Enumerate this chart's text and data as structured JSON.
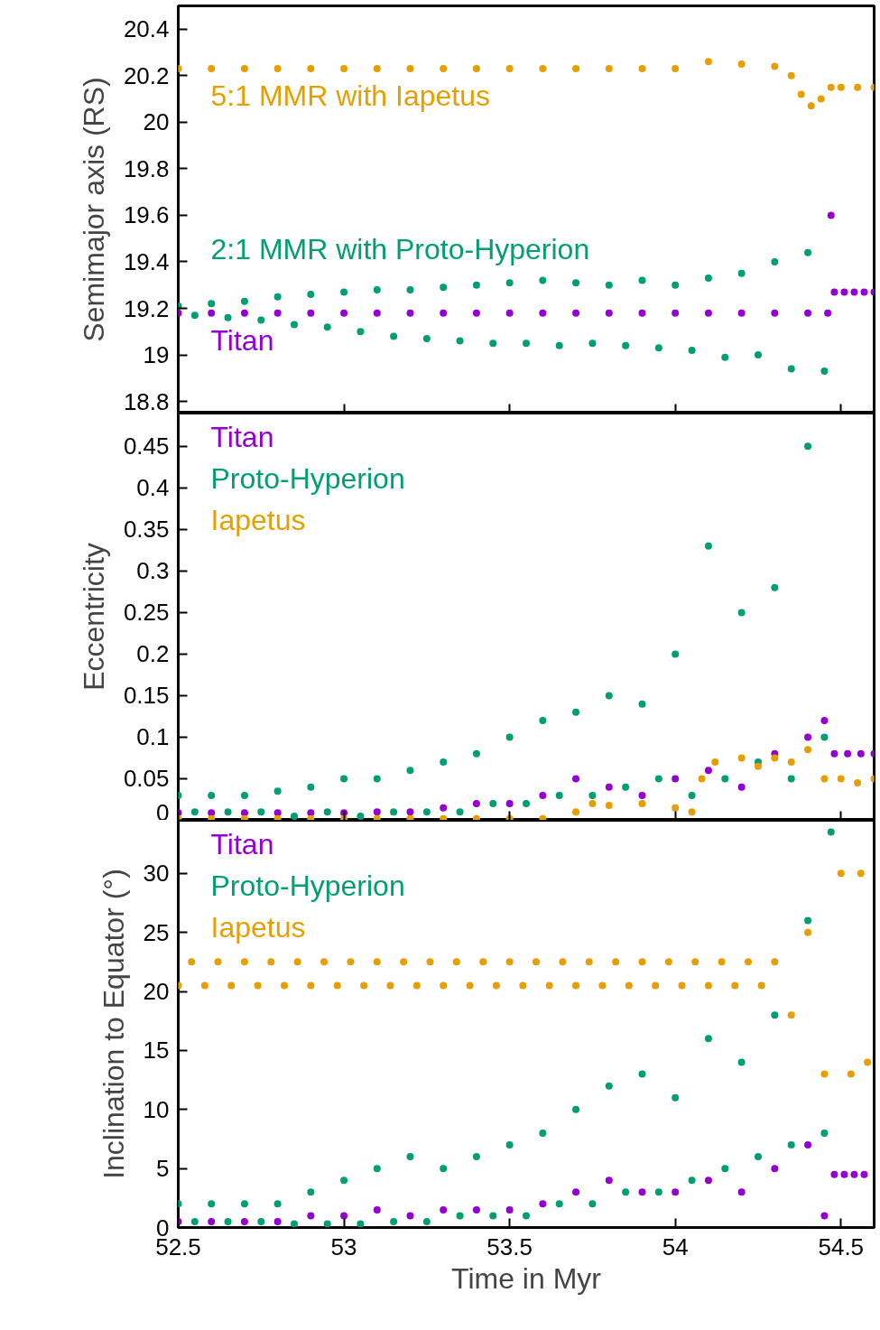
{
  "chart_data": [
    {
      "type": "scatter",
      "ylabel": "Semimajor axis (RS)",
      "xlim": [
        52.5,
        54.6
      ],
      "xticks": [
        52.5,
        53,
        53.5,
        54,
        54.5
      ],
      "ylim": [
        18.75,
        20.5
      ],
      "yticks": [
        18.8,
        19,
        19.2,
        19.4,
        19.6,
        19.8,
        20,
        20.2,
        20.4
      ],
      "tick_labels": "y",
      "marker": "circle",
      "series": [
        {
          "name": "5:1 MMR with Iapetus",
          "color": "#e69f00",
          "x": [
            52.5,
            52.6,
            52.7,
            52.8,
            52.9,
            53.0,
            53.1,
            53.2,
            53.3,
            53.4,
            53.5,
            53.6,
            53.7,
            53.8,
            53.9,
            54.0,
            54.1,
            54.2,
            54.3,
            54.35,
            54.38,
            54.41,
            54.44,
            54.47,
            54.5,
            54.55,
            54.6
          ],
          "values": [
            20.23,
            20.23,
            20.23,
            20.23,
            20.23,
            20.23,
            20.23,
            20.23,
            20.23,
            20.23,
            20.23,
            20.23,
            20.23,
            20.23,
            20.23,
            20.23,
            20.26,
            20.25,
            20.24,
            20.2,
            20.12,
            20.07,
            20.1,
            20.15,
            20.15,
            20.15,
            20.15
          ]
        },
        {
          "name": "2:1 MMR with Proto-Hyperion",
          "color": "#009e73",
          "x": [
            52.5,
            52.55,
            52.6,
            52.65,
            52.7,
            52.75,
            52.8,
            52.85,
            52.9,
            52.95,
            53.0,
            53.05,
            53.1,
            53.15,
            53.2,
            53.25,
            53.3,
            53.35,
            53.4,
            53.45,
            53.5,
            53.55,
            53.6,
            53.65,
            53.7,
            53.75,
            53.8,
            53.85,
            53.9,
            53.95,
            54.0,
            54.05,
            54.1,
            54.15,
            54.2,
            54.25,
            54.3,
            54.35,
            54.4,
            54.45
          ],
          "values": [
            19.21,
            19.17,
            19.22,
            19.16,
            19.23,
            19.15,
            19.25,
            19.13,
            19.26,
            19.12,
            19.27,
            19.1,
            19.28,
            19.08,
            19.28,
            19.07,
            19.29,
            19.06,
            19.3,
            19.05,
            19.31,
            19.05,
            19.32,
            19.04,
            19.31,
            19.05,
            19.3,
            19.04,
            19.32,
            19.03,
            19.3,
            19.02,
            19.33,
            18.99,
            19.35,
            19.0,
            19.4,
            18.94,
            19.44,
            18.93
          ]
        },
        {
          "name": "Titan",
          "color": "#9400d3",
          "x": [
            52.5,
            52.6,
            52.7,
            52.8,
            52.9,
            53.0,
            53.1,
            53.2,
            53.3,
            53.4,
            53.5,
            53.6,
            53.7,
            53.8,
            53.9,
            54.0,
            54.1,
            54.2,
            54.3,
            54.4,
            54.46,
            54.47,
            54.48,
            54.51,
            54.54,
            54.57,
            54.6
          ],
          "values": [
            19.18,
            19.18,
            19.18,
            19.18,
            19.18,
            19.18,
            19.18,
            19.18,
            19.18,
            19.18,
            19.18,
            19.18,
            19.18,
            19.18,
            19.18,
            19.18,
            19.18,
            19.18,
            19.18,
            19.18,
            19.18,
            19.6,
            19.27,
            19.27,
            19.27,
            19.27,
            19.27
          ]
        }
      ]
    },
    {
      "type": "scatter",
      "ylabel": "Eccentricity",
      "xlim": [
        52.5,
        54.6
      ],
      "xticks": [
        52.5,
        53,
        53.5,
        54,
        54.5
      ],
      "ylim": [
        0,
        0.49
      ],
      "yticks": [
        0,
        0.05,
        0.1,
        0.15,
        0.2,
        0.25,
        0.3,
        0.35,
        0.4,
        0.45
      ],
      "tick_labels": "y",
      "marker": "circle",
      "legend": "top left",
      "series": [
        {
          "name": "Titan",
          "color": "#9400d3",
          "x": [
            52.5,
            52.6,
            52.7,
            52.8,
            52.9,
            53.0,
            53.1,
            53.2,
            53.3,
            53.4,
            53.5,
            53.6,
            53.7,
            53.8,
            53.9,
            54.0,
            54.1,
            54.2,
            54.3,
            54.4,
            54.45,
            54.48,
            54.52,
            54.56,
            54.6
          ],
          "values": [
            0.009,
            0.009,
            0.009,
            0.009,
            0.009,
            0.009,
            0.01,
            0.01,
            0.015,
            0.02,
            0.02,
            0.03,
            0.05,
            0.04,
            0.03,
            0.05,
            0.06,
            0.04,
            0.08,
            0.1,
            0.12,
            0.08,
            0.08,
            0.08,
            0.08
          ]
        },
        {
          "name": "Proto-Hyperion",
          "color": "#009e73",
          "x": [
            52.5,
            52.55,
            52.6,
            52.65,
            52.7,
            52.75,
            52.8,
            52.85,
            52.9,
            52.95,
            53.0,
            53.05,
            53.1,
            53.15,
            53.2,
            53.25,
            53.3,
            53.35,
            53.4,
            53.45,
            53.5,
            53.55,
            53.6,
            53.65,
            53.7,
            53.75,
            53.8,
            53.85,
            53.9,
            53.95,
            54.0,
            54.05,
            54.1,
            54.15,
            54.2,
            54.25,
            54.3,
            54.35,
            54.4,
            54.45
          ],
          "values": [
            0.03,
            0.01,
            0.03,
            0.01,
            0.03,
            0.01,
            0.035,
            0.005,
            0.04,
            0.01,
            0.05,
            0.005,
            0.05,
            0.01,
            0.06,
            0.01,
            0.07,
            0.01,
            0.08,
            0.02,
            0.1,
            0.02,
            0.12,
            0.03,
            0.13,
            0.03,
            0.15,
            0.04,
            0.14,
            0.05,
            0.2,
            0.03,
            0.33,
            0.05,
            0.25,
            0.07,
            0.28,
            0.05,
            0.45,
            0.1
          ]
        },
        {
          "name": "Iapetus",
          "color": "#e69f00",
          "x": [
            52.5,
            52.6,
            52.7,
            52.8,
            52.9,
            53.0,
            53.1,
            53.2,
            53.3,
            53.4,
            53.5,
            53.6,
            53.7,
            53.75,
            53.8,
            53.9,
            54.0,
            54.05,
            54.08,
            54.12,
            54.2,
            54.25,
            54.3,
            54.35,
            54.4,
            54.45,
            54.5,
            54.55,
            54.6
          ],
          "values": [
            0.002,
            0.002,
            0.002,
            0.002,
            0.002,
            0.002,
            0.002,
            0.002,
            0.002,
            0.002,
            0.002,
            0.002,
            0.01,
            0.02,
            0.018,
            0.02,
            0.015,
            0.01,
            0.05,
            0.07,
            0.075,
            0.065,
            0.075,
            0.07,
            0.085,
            0.05,
            0.05,
            0.045,
            0.05
          ]
        }
      ]
    },
    {
      "type": "scatter",
      "xlabel": "Time in Myr",
      "ylabel": "Inclination to Equator (°)",
      "xlim": [
        52.5,
        54.6
      ],
      "xticks": [
        52.5,
        53,
        53.5,
        54,
        54.5
      ],
      "ylim": [
        0,
        34.5
      ],
      "yticks": [
        0,
        5,
        10,
        15,
        20,
        25,
        30
      ],
      "marker": "circle",
      "legend": "top left",
      "series": [
        {
          "name": "Titan",
          "color": "#9400d3",
          "x": [
            52.5,
            52.6,
            52.7,
            52.8,
            52.9,
            53.0,
            53.1,
            53.2,
            53.3,
            53.4,
            53.5,
            53.6,
            53.7,
            53.8,
            53.9,
            54.0,
            54.1,
            54.2,
            54.3,
            54.4,
            54.45,
            54.48,
            54.51,
            54.54,
            54.57
          ],
          "values": [
            0.5,
            0.5,
            0.5,
            0.5,
            1,
            1,
            1.5,
            1,
            1.5,
            1.5,
            1.5,
            2,
            3,
            4,
            3,
            3,
            4,
            3,
            5,
            7,
            1,
            4.5,
            4.5,
            4.5,
            4.5
          ]
        },
        {
          "name": "Proto-Hyperion",
          "color": "#009e73",
          "x": [
            52.5,
            52.55,
            52.6,
            52.65,
            52.7,
            52.75,
            52.8,
            52.85,
            52.9,
            52.95,
            53.0,
            53.05,
            53.1,
            53.15,
            53.2,
            53.25,
            53.3,
            53.35,
            53.4,
            53.45,
            53.5,
            53.55,
            53.6,
            53.65,
            53.7,
            53.75,
            53.8,
            53.85,
            53.9,
            53.95,
            54.0,
            54.05,
            54.1,
            54.15,
            54.2,
            54.25,
            54.3,
            54.35,
            54.4,
            54.45,
            54.47
          ],
          "values": [
            2,
            0.5,
            2,
            0.5,
            2,
            0.5,
            2,
            0.3,
            3,
            0.3,
            4,
            0.3,
            5,
            0.5,
            6,
            0.5,
            5,
            1,
            6,
            1,
            7,
            1,
            8,
            2,
            10,
            2,
            12,
            3,
            13,
            3,
            11,
            4,
            16,
            5,
            14,
            6,
            18,
            7,
            26,
            8,
            33.5
          ]
        },
        {
          "name": "Iapetus",
          "color": "#e69f00",
          "x": [
            52.5,
            52.54,
            52.58,
            52.62,
            52.66,
            52.7,
            52.74,
            52.78,
            52.82,
            52.86,
            52.9,
            52.94,
            52.98,
            53.02,
            53.06,
            53.1,
            53.14,
            53.18,
            53.22,
            53.26,
            53.3,
            53.34,
            53.38,
            53.42,
            53.46,
            53.5,
            53.54,
            53.58,
            53.62,
            53.66,
            53.7,
            53.74,
            53.78,
            53.82,
            53.86,
            53.9,
            53.94,
            53.98,
            54.02,
            54.06,
            54.1,
            54.14,
            54.18,
            54.22,
            54.26,
            54.3,
            54.35,
            54.4,
            54.45,
            54.5,
            54.53,
            54.56,
            54.58
          ],
          "values": [
            20.5,
            22.5,
            20.5,
            22.5,
            20.5,
            22.5,
            20.5,
            22.5,
            20.5,
            22.5,
            20.5,
            22.5,
            20.5,
            22.5,
            20.5,
            22.5,
            20.5,
            22.5,
            20.5,
            22.5,
            20.5,
            22.5,
            20.5,
            22.5,
            20.5,
            22.5,
            20.5,
            22.5,
            20.5,
            22.5,
            20.5,
            22.5,
            20.5,
            22.5,
            20.5,
            22.5,
            20.5,
            22.5,
            20.5,
            22.5,
            20.5,
            22.5,
            20.5,
            22.5,
            20.5,
            22.5,
            18,
            25,
            13,
            30,
            13,
            30,
            14
          ]
        }
      ]
    }
  ]
}
